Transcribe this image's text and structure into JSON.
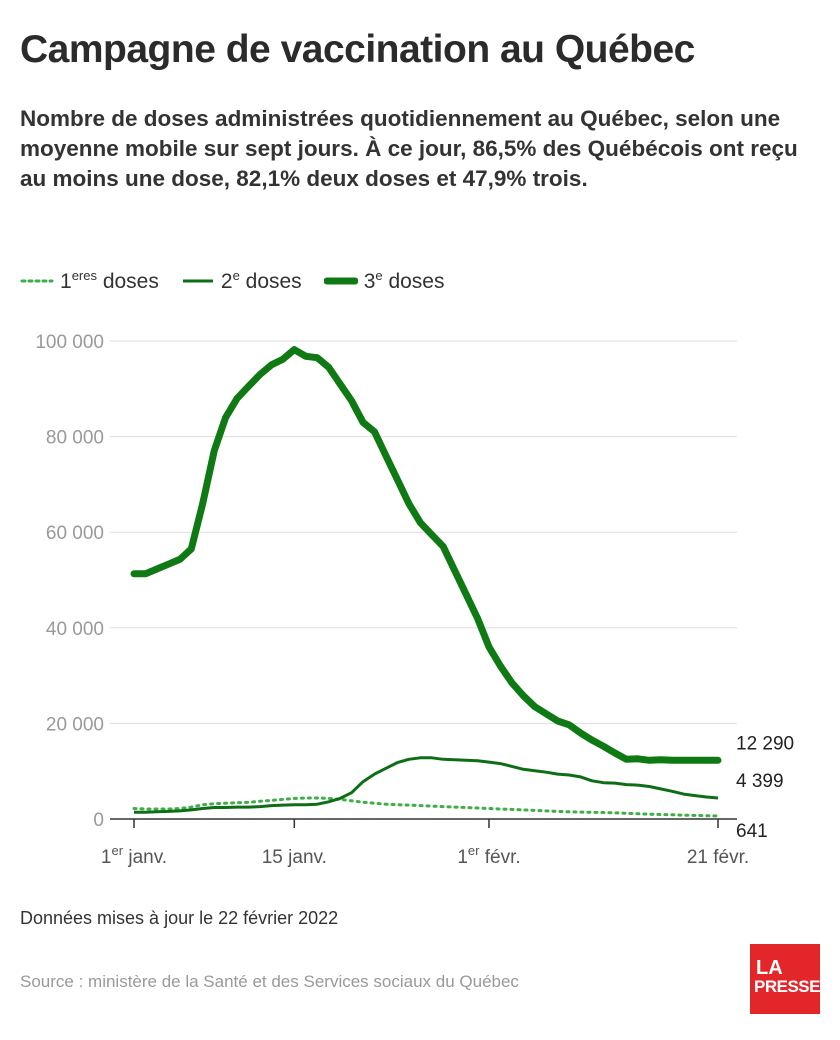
{
  "header": {
    "title": "Campagne de vaccination au Québec",
    "subtitle": "Nombre de doses administrées quotidiennement au Québec, selon une moyenne mobile sur sept jours. À ce jour, 86,5% des Québécois ont reçu au moins une dose, 82,1% deux doses et 47,9% trois."
  },
  "legend": [
    {
      "num": "1",
      "sup": "eres",
      "label": "doses",
      "style": "dotted"
    },
    {
      "num": "2",
      "sup": "e",
      "label": "doses",
      "style": "thin"
    },
    {
      "num": "3",
      "sup": "e",
      "label": "doses",
      "style": "thick"
    }
  ],
  "footer": {
    "updated": "Données mises à jour le 22 février 2022",
    "source": "Source : ministère de la Santé et des Services sociaux du Québec",
    "logo_line1": "LA",
    "logo_line2": "PRESSE"
  },
  "chart_data": {
    "type": "line",
    "title": "Campagne de vaccination au Québec",
    "xlabel": "",
    "ylabel": "",
    "ylim": [
      0,
      100000
    ],
    "yticks": [
      0,
      20000,
      40000,
      60000,
      80000,
      100000
    ],
    "ytick_labels": [
      "0",
      "20 000",
      "40 000",
      "60 000",
      "80 000",
      "100 000"
    ],
    "xticks": [
      {
        "day": 1,
        "num": "1",
        "sup": "er",
        "text": "janv."
      },
      {
        "day": 15,
        "num": "15",
        "sup": "",
        "text": "janv."
      },
      {
        "day": 32,
        "num": "1",
        "sup": "er",
        "text": "févr."
      },
      {
        "day": 52,
        "num": "21",
        "sup": "",
        "text": "févr."
      }
    ],
    "grid": true,
    "x_start": "2022-01-01",
    "colors": {
      "dose1": "#3fae49",
      "dose2": "#0d6e16",
      "dose3": "#0f7a14",
      "grid": "#dddddd",
      "axis": "#333333"
    },
    "series": [
      {
        "name": "3e doses",
        "key": "dose3",
        "end_label": "12 290",
        "x": [
          1,
          2,
          3,
          4,
          5,
          6,
          7,
          8,
          9,
          10,
          11,
          12,
          13,
          14,
          15,
          16,
          17,
          18,
          19,
          20,
          21,
          22,
          23,
          24,
          25,
          26,
          27,
          28,
          29,
          30,
          31,
          32,
          33,
          34,
          35,
          36,
          37,
          38,
          39,
          40,
          41,
          42,
          43,
          44,
          45,
          46,
          47,
          48,
          49,
          50,
          51,
          52
        ],
        "values": [
          51300,
          51300,
          52300,
          53300,
          54300,
          56500,
          66000,
          77000,
          84000,
          88000,
          90500,
          93000,
          95000,
          96200,
          98200,
          96800,
          96500,
          94500,
          91000,
          87500,
          83000,
          81000,
          76000,
          71000,
          66000,
          62000,
          59500,
          57000,
          52000,
          47000,
          42000,
          36000,
          32000,
          28500,
          25800,
          23500,
          22000,
          20500,
          19700,
          18000,
          16500,
          15200,
          13800,
          12500,
          12600,
          12290,
          12400,
          12290,
          12290,
          12290,
          12290,
          12290
        ]
      },
      {
        "name": "2e doses",
        "key": "dose2",
        "end_label": "4 399",
        "x": [
          1,
          2,
          3,
          4,
          5,
          6,
          7,
          8,
          9,
          10,
          11,
          12,
          13,
          14,
          15,
          16,
          17,
          18,
          19,
          20,
          21,
          22,
          23,
          24,
          25,
          26,
          27,
          28,
          29,
          30,
          31,
          32,
          33,
          34,
          35,
          36,
          37,
          38,
          39,
          40,
          41,
          42,
          43,
          44,
          45,
          46,
          47,
          48,
          49,
          50,
          51,
          52
        ],
        "values": [
          1400,
          1400,
          1500,
          1600,
          1700,
          1900,
          2200,
          2400,
          2400,
          2500,
          2500,
          2600,
          2800,
          2900,
          3000,
          3000,
          3100,
          3600,
          4300,
          5500,
          7800,
          9400,
          10600,
          11800,
          12500,
          12800,
          12800,
          12500,
          12400,
          12300,
          12200,
          11900,
          11600,
          11000,
          10400,
          10100,
          9800,
          9400,
          9200,
          8800,
          8000,
          7600,
          7500,
          7200,
          7100,
          6800,
          6300,
          5800,
          5200,
          4900,
          4600,
          4399
        ]
      },
      {
        "name": "1eres doses",
        "key": "dose1",
        "end_label": "641",
        "x": [
          1,
          2,
          3,
          4,
          5,
          6,
          7,
          8,
          9,
          10,
          11,
          12,
          13,
          14,
          15,
          16,
          17,
          18,
          19,
          20,
          21,
          22,
          23,
          24,
          25,
          26,
          27,
          28,
          29,
          30,
          31,
          32,
          33,
          34,
          35,
          36,
          37,
          38,
          39,
          40,
          41,
          42,
          43,
          44,
          45,
          46,
          47,
          48,
          49,
          50,
          51,
          52
        ],
        "values": [
          2200,
          2100,
          2100,
          2100,
          2200,
          2500,
          3000,
          3200,
          3300,
          3400,
          3500,
          3700,
          3900,
          4100,
          4300,
          4400,
          4400,
          4300,
          4100,
          3800,
          3500,
          3300,
          3100,
          3000,
          2900,
          2800,
          2700,
          2600,
          2500,
          2400,
          2300,
          2200,
          2100,
          2000,
          1900,
          1800,
          1700,
          1600,
          1500,
          1450,
          1400,
          1350,
          1300,
          1200,
          1100,
          1000,
          950,
          900,
          800,
          750,
          700,
          641
        ]
      }
    ]
  }
}
